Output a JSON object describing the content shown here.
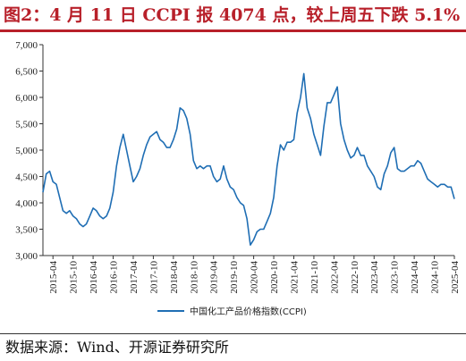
{
  "title": "图2：4 月 11 日 CCPI 报 4074 点，较上周五下跌 5.1%",
  "source": "数据来源：Wind、开源证券研究所",
  "colors": {
    "title": "#b8202a",
    "line": "#1f6eb4",
    "axis": "#333333"
  },
  "chart_data": {
    "type": "line",
    "title": "",
    "xlabel": "",
    "ylabel": "",
    "ylim": [
      3000,
      7000
    ],
    "y_ticks": [
      "3,000",
      "3,500",
      "4,000",
      "4,500",
      "5,000",
      "5,500",
      "6,000",
      "6,500",
      "7,000"
    ],
    "x_ticks": [
      "2015-04",
      "2015-10",
      "2016-04",
      "2016-10",
      "2017-04",
      "2017-10",
      "2018-04",
      "2018-10",
      "2019-04",
      "2019-10",
      "2020-04",
      "2020-10",
      "2021-04",
      "2021-10",
      "2022-04",
      "2022-10",
      "2023-04",
      "2023-10",
      "2024-04",
      "2024-10",
      "2025-04"
    ],
    "grid": false,
    "legend_position": "bottom-center",
    "series": [
      {
        "name": "中国化工产品价格指数(CCPI)",
        "x": [
          "2015-01",
          "2015-02",
          "2015-03",
          "2015-04",
          "2015-05",
          "2015-06",
          "2015-07",
          "2015-08",
          "2015-09",
          "2015-10",
          "2015-11",
          "2015-12",
          "2016-01",
          "2016-02",
          "2016-03",
          "2016-04",
          "2016-05",
          "2016-06",
          "2016-07",
          "2016-08",
          "2016-09",
          "2016-10",
          "2016-11",
          "2016-12",
          "2017-01",
          "2017-02",
          "2017-03",
          "2017-04",
          "2017-05",
          "2017-06",
          "2017-07",
          "2017-08",
          "2017-09",
          "2017-10",
          "2017-11",
          "2017-12",
          "2018-01",
          "2018-02",
          "2018-03",
          "2018-04",
          "2018-05",
          "2018-06",
          "2018-07",
          "2018-08",
          "2018-09",
          "2018-10",
          "2018-11",
          "2018-12",
          "2019-01",
          "2019-02",
          "2019-03",
          "2019-04",
          "2019-05",
          "2019-06",
          "2019-07",
          "2019-08",
          "2019-09",
          "2019-10",
          "2019-11",
          "2019-12",
          "2020-01",
          "2020-02",
          "2020-03",
          "2020-04",
          "2020-05",
          "2020-06",
          "2020-07",
          "2020-08",
          "2020-09",
          "2020-10",
          "2020-11",
          "2020-12",
          "2021-01",
          "2021-02",
          "2021-03",
          "2021-04",
          "2021-05",
          "2021-06",
          "2021-07",
          "2021-08",
          "2021-09",
          "2021-10",
          "2021-11",
          "2021-12",
          "2022-01",
          "2022-02",
          "2022-03",
          "2022-04",
          "2022-05",
          "2022-06",
          "2022-07",
          "2022-08",
          "2022-09",
          "2022-10",
          "2022-11",
          "2022-12",
          "2023-01",
          "2023-02",
          "2023-03",
          "2023-04",
          "2023-05",
          "2023-06",
          "2023-07",
          "2023-08",
          "2023-09",
          "2023-10",
          "2023-11",
          "2023-12",
          "2024-01",
          "2024-02",
          "2024-03",
          "2024-04",
          "2024-05",
          "2024-06",
          "2024-07",
          "2024-08",
          "2024-09",
          "2024-10",
          "2024-11",
          "2024-12",
          "2025-01",
          "2025-02",
          "2025-03",
          "2025-04"
        ],
        "values": [
          4200,
          4550,
          4600,
          4400,
          4350,
          4100,
          3850,
          3800,
          3850,
          3750,
          3700,
          3600,
          3550,
          3600,
          3750,
          3900,
          3850,
          3750,
          3700,
          3750,
          3900,
          4200,
          4700,
          5050,
          5300,
          5000,
          4700,
          4400,
          4500,
          4650,
          4900,
          5100,
          5250,
          5300,
          5350,
          5200,
          5150,
          5050,
          5050,
          5200,
          5400,
          5800,
          5750,
          5600,
          5300,
          4800,
          4650,
          4700,
          4650,
          4700,
          4700,
          4500,
          4400,
          4450,
          4700,
          4450,
          4300,
          4250,
          4100,
          4000,
          3950,
          3700,
          3200,
          3300,
          3450,
          3500,
          3500,
          3650,
          3800,
          4100,
          4700,
          5100,
          5000,
          5150,
          5150,
          5200,
          5700,
          6000,
          6450,
          5800,
          5600,
          5300,
          5100,
          4900,
          5450,
          5900,
          5900,
          6050,
          6200,
          5500,
          5200,
          5000,
          4850,
          4900,
          5050,
          4900,
          4900,
          4700,
          4600,
          4500,
          4300,
          4250,
          4550,
          4700,
          4950,
          5050,
          4650,
          4600,
          4600,
          4650,
          4700,
          4700,
          4800,
          4750,
          4600,
          4450,
          4400,
          4350,
          4300,
          4350,
          4350,
          4300,
          4300,
          4074
        ]
      }
    ]
  }
}
